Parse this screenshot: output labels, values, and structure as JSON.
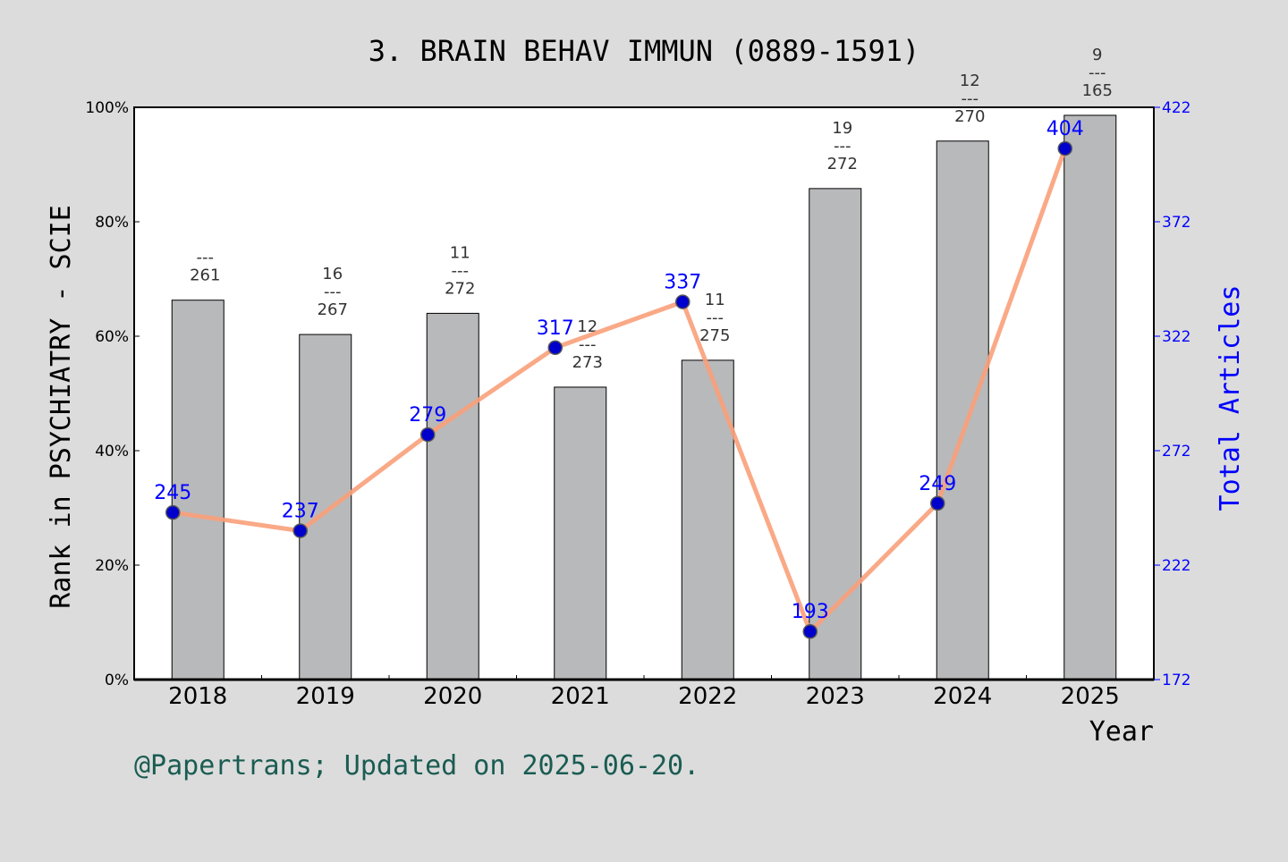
{
  "footer": "@Papertrans; Updated on 2025-06-20.",
  "chart_data": {
    "type": "bar",
    "title": "3. BRAIN BEHAV IMMUN (0889-1591)",
    "xlabel": "Year",
    "ylabel": "Rank in PSYCHIATRY - SCIE",
    "y2label": "Total Articles",
    "categories": [
      "2018",
      "2019",
      "2020",
      "2021",
      "2022",
      "2023",
      "2024",
      "2025"
    ],
    "ylim": [
      0,
      100
    ],
    "yticks": [
      "0%",
      "20%",
      "40%",
      "60%",
      "80%",
      "100%"
    ],
    "y2lim": [
      172,
      422
    ],
    "y2ticks": [
      "172",
      "222",
      "272",
      "322",
      "372",
      "422"
    ],
    "series": [
      {
        "kind": "bar",
        "values": [
          66.3,
          60.3,
          64.0,
          51.1,
          55.8,
          85.8,
          94.1,
          98.6
        ],
        "color": "#b8b9bb",
        "annotations": [
          {
            "rank": "",
            "total": "261"
          },
          {
            "rank": "16",
            "total": "267"
          },
          {
            "rank": "11",
            "total": "272"
          },
          {
            "rank": "12",
            "total": "273"
          },
          {
            "rank": "11",
            "total": "275"
          },
          {
            "rank": "19",
            "total": "272"
          },
          {
            "rank": "12",
            "total": "270"
          },
          {
            "rank": "9",
            "total": "165"
          }
        ]
      },
      {
        "kind": "line",
        "axis": "right",
        "values": [
          245,
          237,
          279,
          317,
          337,
          193,
          249,
          404
        ],
        "labels": [
          "245",
          "237",
          "279",
          "317",
          "337",
          "193",
          "249",
          "404"
        ],
        "line_color": "#f9a07a",
        "marker_color": "#0000cc"
      }
    ],
    "colors": {
      "background": "#dcdcdc",
      "plot": "#ffffff",
      "right_axis": "#0000ff",
      "footer": "#1a5c52",
      "bar_label": "#333333"
    },
    "fraction_line": "---"
  }
}
